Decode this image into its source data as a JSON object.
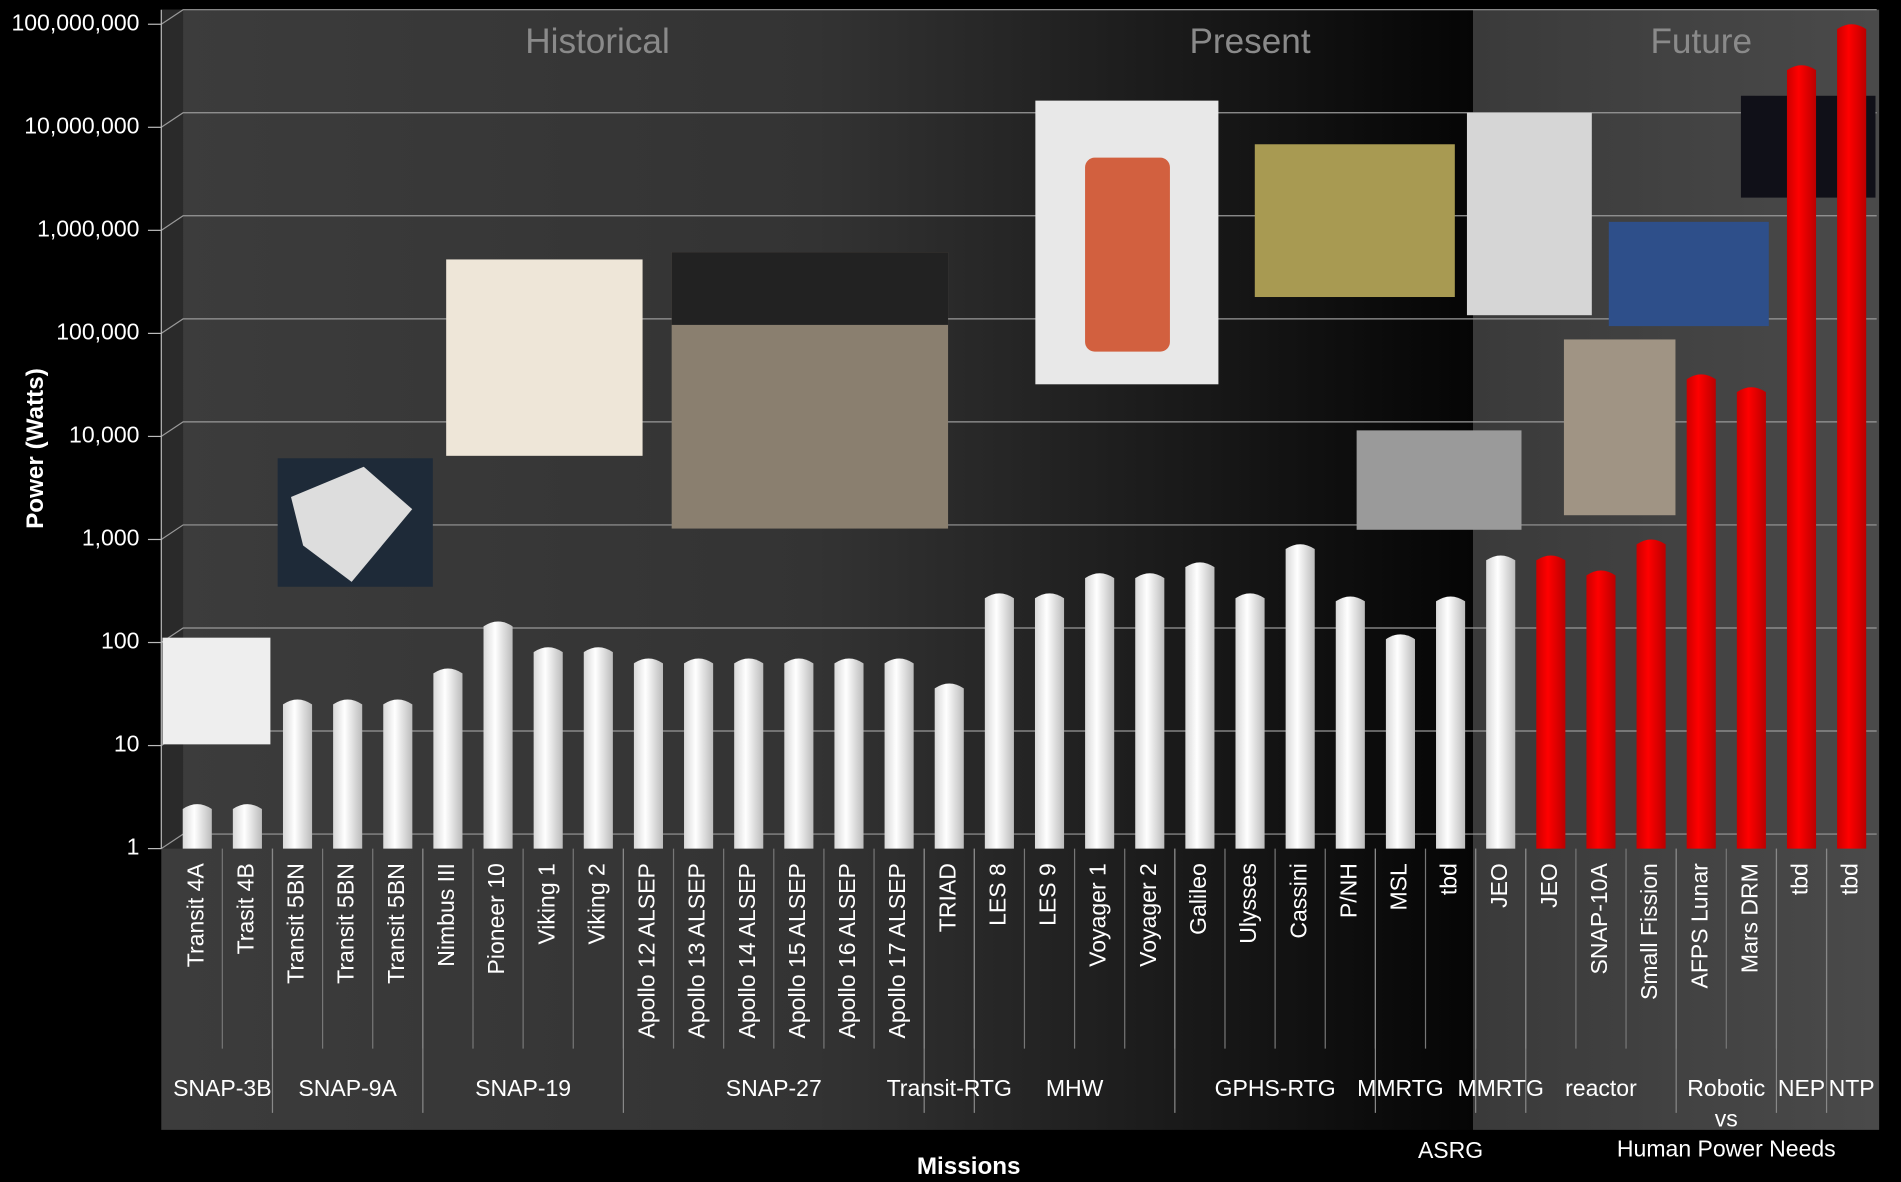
{
  "chart_data": {
    "type": "bar",
    "y_label": "Power (Watts)",
    "x_label": "Missions",
    "log_scale": true,
    "grid": true,
    "ylim": [
      1,
      100000000
    ],
    "yticks": [
      1,
      10,
      100,
      {
        "value": 1000,
        "label": "1,000"
      },
      {
        "value": 10000,
        "label": "10,000"
      },
      {
        "value": 100000,
        "label": "100,000"
      },
      {
        "value": 1000000,
        "label": "1,000,000"
      },
      {
        "value": 10000000,
        "label": "10,000,000"
      },
      {
        "value": 100000000,
        "label": "100,000,000"
      }
    ],
    "sections": [
      {
        "label": "Historical",
        "first": 0,
        "last": 15
      },
      {
        "label": "Present",
        "first": 16,
        "last": 26
      },
      {
        "label": "Future",
        "first": 27,
        "last": 33
      }
    ],
    "categories": [
      "Transit 4A",
      "Trasit 4B",
      "Transit 5BN",
      "Transit 5BN",
      "Transit 5BN",
      "Nimbus III",
      "Pioneer 10",
      "Viking 1",
      "Viking 2",
      "Apollo 12 ALSEP",
      "Apollo 13 ALSEP",
      "Apollo 14 ALSEP",
      "Apollo 15 ALSEP",
      "Apollo 16 ALSEP",
      "Apollo 17 ALSEP",
      "TRIAD",
      "LES 8",
      "LES 9",
      "Voyager 1",
      "Voyager 2",
      "Galileo",
      "Ulysses",
      "Cassini",
      "P/NH",
      "MSL",
      "tbd",
      "JEO",
      "JEO",
      "SNAP-10A",
      "Small Fission",
      "AFPS Lunar",
      "Mars DRM",
      "tbd",
      "tbd"
    ],
    "values": [
      2.7,
      2.7,
      28,
      28,
      28,
      56,
      160,
      90,
      90,
      70,
      70,
      70,
      70,
      70,
      70,
      40,
      300,
      300,
      470,
      470,
      600,
      300,
      900,
      280,
      120,
      280,
      700,
      700,
      500,
      1000,
      40000,
      30000,
      40000000,
      100000000
    ],
    "colors": [
      "#ffffff",
      "#ffffff",
      "#ffffff",
      "#ffffff",
      "#ffffff",
      "#ffffff",
      "#ffffff",
      "#ffffff",
      "#ffffff",
      "#ffffff",
      "#ffffff",
      "#ffffff",
      "#ffffff",
      "#ffffff",
      "#ffffff",
      "#ffffff",
      "#ffffff",
      "#ffffff",
      "#ffffff",
      "#ffffff",
      "#ffffff",
      "#ffffff",
      "#ffffff",
      "#ffffff",
      "#ffffff",
      "#ffffff",
      "#ffffff",
      "#ff0000",
      "#ff0000",
      "#ff0000",
      "#ff0000",
      "#ff0000",
      "#ff0000",
      "#ff0000"
    ],
    "groups": [
      {
        "lines": [
          "SNAP-3B"
        ],
        "first": 0,
        "last": 1
      },
      {
        "lines": [
          "SNAP-9A"
        ],
        "first": 2,
        "last": 4
      },
      {
        "lines": [
          "SNAP-19"
        ],
        "first": 5,
        "last": 8
      },
      {
        "lines": [
          "SNAP-27"
        ],
        "first": 9,
        "last": 14
      },
      {
        "lines": [
          "Transit-RTG"
        ],
        "first": 15,
        "last": 15
      },
      {
        "lines": [
          "MHW"
        ],
        "first": 16,
        "last": 19
      },
      {
        "lines": [
          "GPHS-RTG"
        ],
        "first": 20,
        "last": 23
      },
      {
        "lines": [
          "MMRTG"
        ],
        "first": 24,
        "last": 24
      },
      {
        "lines": [
          "ASRG"
        ],
        "first": 25,
        "last": 25,
        "low": true
      },
      {
        "lines": [
          "MMRTG"
        ],
        "first": 26,
        "last": 26
      },
      {
        "lines": [
          "reactor"
        ],
        "first": 27,
        "last": 29
      },
      {
        "lines": [
          "Robotic",
          "vs",
          "Human Power Needs"
        ],
        "first": 30,
        "last": 31
      },
      {
        "lines": [
          "NEP"
        ],
        "first": 32,
        "last": 32
      },
      {
        "lines": [
          "NTP"
        ],
        "first": 33,
        "last": 33
      }
    ]
  }
}
